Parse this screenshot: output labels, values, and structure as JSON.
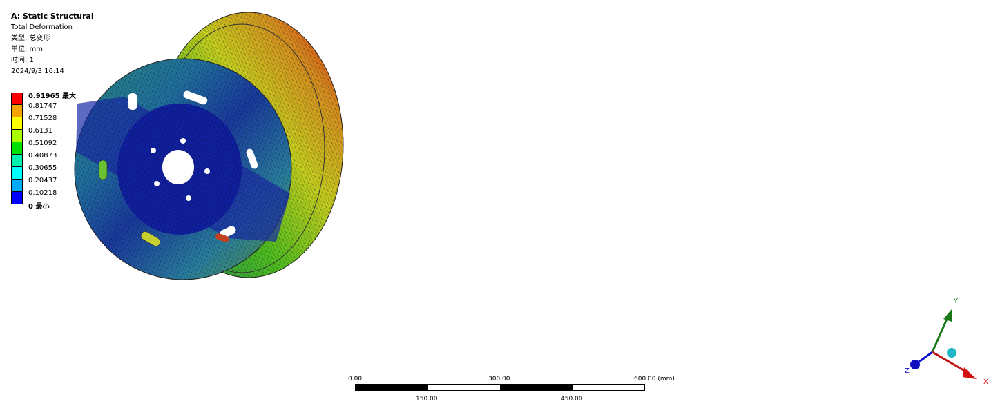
{
  "header": {
    "title": "A: Static Structural",
    "result": "Total Deformation",
    "type": "类型: 总变形",
    "unit": "单位: mm",
    "time": "时间: 1",
    "date": "2024/9/3 16:14"
  },
  "legend": {
    "bands": [
      {
        "label": "0.91965 最大",
        "color": "#ff0000"
      },
      {
        "label": "0.81747",
        "color": "#f5a300"
      },
      {
        "label": "0.71528",
        "color": "#ffff00"
      },
      {
        "label": "0.6131",
        "color": "#aaff00"
      },
      {
        "label": "0.51092",
        "color": "#00e000"
      },
      {
        "label": "0.40873",
        "color": "#00f0b0"
      },
      {
        "label": "0.30655",
        "color": "#00ffff"
      },
      {
        "label": "0.20437",
        "color": "#00aaff"
      },
      {
        "label": "0.10218",
        "color": "#0000ff"
      },
      {
        "label": "0 最小",
        "color": null
      }
    ]
  },
  "scale_bar": {
    "top_labels": [
      "0.00",
      "300.00",
      "600.00 (mm)"
    ],
    "bottom_labels": [
      "150.00",
      "450.00"
    ]
  },
  "triad": {
    "x": "X",
    "y": "Y",
    "z": "Z"
  }
}
